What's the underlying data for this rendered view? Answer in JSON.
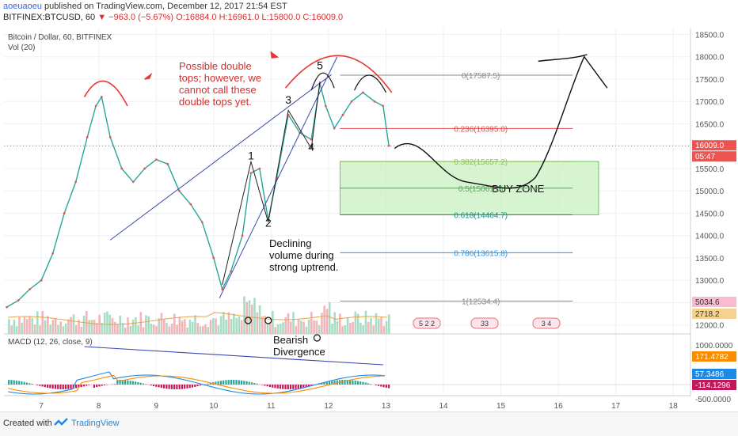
{
  "header": {
    "user": "aoeuaoeu",
    "published": "published on TradingView.com, December 12, 2017 21:54 EST",
    "symbol": "BITFINEX:BTCUSD, 60",
    "change": "▼ −963.0 (−5.67%)",
    "ohlc": "O:16884.0 H:16961.0 L:15800.0 C:16009.0"
  },
  "footer": {
    "created_with": "Created with",
    "brand": "TradingView"
  },
  "chart_data": {
    "type": "line",
    "title": "Bitcoin / Dollar, 60, BITFINEX",
    "volume_label": "Vol (20)",
    "macd_label": "MACD (12, 26, close, 9)",
    "x_ticks": [
      "7",
      "8",
      "9",
      "10",
      "11",
      "12",
      "13",
      "14",
      "15",
      "16",
      "17",
      "18"
    ],
    "y_ticks": [
      12000.0,
      12500.0,
      13000.0,
      13500.0,
      14000.0,
      14500.0,
      15000.0,
      15500.0,
      16000.0,
      16500.0,
      17000.0,
      17500.0,
      18000.0,
      18500.0
    ],
    "y_tick_labels": [
      "12000.0",
      "12500.0",
      "13000.0",
      "13500.0",
      "14000.0",
      "14500.0",
      "15000.0",
      "15500.0",
      "16000.0",
      "16500.0",
      "17000.0",
      "17500.0",
      "18000.0",
      "18500.0"
    ],
    "ylim": [
      11800,
      18650
    ],
    "xlim": [
      6.35,
      18.3
    ],
    "price_path": [
      [
        6.4,
        12400
      ],
      [
        6.6,
        12550
      ],
      [
        6.8,
        12800
      ],
      [
        7.0,
        13000
      ],
      [
        7.2,
        13600
      ],
      [
        7.4,
        14500
      ],
      [
        7.6,
        15200
      ],
      [
        7.8,
        16200
      ],
      [
        7.95,
        16900
      ],
      [
        8.05,
        17100
      ],
      [
        8.2,
        16200
      ],
      [
        8.4,
        15500
      ],
      [
        8.6,
        15200
      ],
      [
        8.8,
        15500
      ],
      [
        9.0,
        15700
      ],
      [
        9.2,
        15600
      ],
      [
        9.4,
        15000
      ],
      [
        9.6,
        14700
      ],
      [
        9.8,
        14300
      ],
      [
        10.0,
        13500
      ],
      [
        10.15,
        12800
      ],
      [
        10.3,
        13200
      ],
      [
        10.5,
        14000
      ],
      [
        10.65,
        15400
      ],
      [
        10.8,
        15500
      ],
      [
        10.95,
        14350
      ],
      [
        11.1,
        15300
      ],
      [
        11.3,
        16700
      ],
      [
        11.5,
        16300
      ],
      [
        11.7,
        16150
      ],
      [
        11.85,
        17400
      ],
      [
        11.95,
        16900
      ],
      [
        12.1,
        16400
      ],
      [
        12.25,
        16700
      ],
      [
        12.4,
        17000
      ],
      [
        12.6,
        17200
      ],
      [
        12.8,
        17000
      ],
      [
        12.95,
        16900
      ],
      [
        13.05,
        16009
      ]
    ],
    "last_price": "16009.0",
    "last_time": "05:47",
    "volume_labels": [
      "5034.6",
      "2718.2"
    ],
    "macd_ticks": [
      "1000.0000",
      "-500.0000"
    ],
    "macd_labels": [
      "171.4782",
      "57.3486",
      "-114.1296"
    ],
    "fib_levels": [
      {
        "label": "0(17587.5)",
        "value": 17587.5,
        "color": "#888888"
      },
      {
        "label": "0.236(16395.0)",
        "value": 16395.0,
        "color": "#e05050"
      },
      {
        "label": "0.382(15657.2)",
        "value": 15657.2,
        "color": "#8bc34a"
      },
      {
        "label": "0.5(15061.0)",
        "value": 15061.0,
        "color": "#4caf50"
      },
      {
        "label": "0.618(14464.7)",
        "value": 14464.7,
        "color": "#009688"
      },
      {
        "label": "0.786(13615.8)",
        "value": 13615.8,
        "color": "#2196f3"
      },
      {
        "label": "1(12534.4)",
        "value": 12534.4,
        "color": "#888888"
      }
    ],
    "buy_zone": {
      "label": "BUY ZONE",
      "from": 14464.7,
      "to": 15657.2
    },
    "wave_points": [
      {
        "label": "1",
        "x": 10.65,
        "y": 15700
      },
      {
        "label": "2",
        "x": 10.95,
        "y": 14200
      },
      {
        "label": "3",
        "x": 11.3,
        "y": 16950
      },
      {
        "label": "4",
        "x": 11.7,
        "y": 15900
      },
      {
        "label": "5",
        "x": 11.85,
        "y": 17720
      }
    ],
    "annotations": {
      "double_top": "Possible double tops; however, we cannot call these double tops yet.",
      "declining": "Declining volume during strong uptrend.",
      "bearish": "Bearish Divergence",
      "event_a": "5 2 2",
      "event_b": "33",
      "event_c": "3 4"
    }
  }
}
